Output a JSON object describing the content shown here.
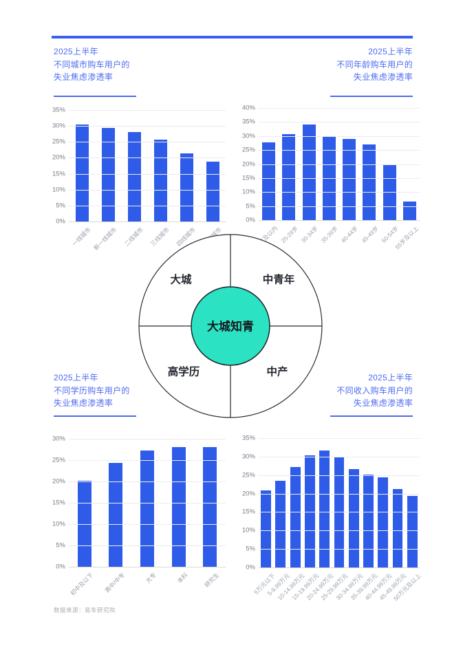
{
  "palette": {
    "accent_blue": "#3b5ef5",
    "title_blue": "#4e6af0",
    "bar_blue": "#2e5ce8",
    "teal": "#2be3c3",
    "ink": "#22262e"
  },
  "sections": {
    "city": {
      "title_lines": [
        "2025上半年",
        "不同城市购车用户的",
        "失业焦虑渗透率"
      ]
    },
    "age": {
      "title_lines": [
        "2025上半年",
        "不同年龄购车用户的",
        "失业焦虑渗透率"
      ]
    },
    "education": {
      "title_lines": [
        "2025上半年",
        "不同学历购车用户的",
        "失业焦虑渗透率"
      ]
    },
    "income": {
      "title_lines": [
        "2025上半年",
        "不同收入购车用户的",
        "失业焦虑渗透率"
      ]
    }
  },
  "venn": {
    "center_label": "大城知青",
    "quadrants": {
      "top_left": "大城",
      "top_right": "中青年",
      "bottom_left": "高学历",
      "bottom_right": "中产"
    }
  },
  "source": "数据来源：易车研究院",
  "chart_data": [
    {
      "type": "bar",
      "title": "2025上半年不同城市购车用户的失业焦虑渗透率",
      "categories": [
        "一线城市",
        "新一线城市",
        "二线城市",
        "三线城市",
        "四线城市",
        "五线城市"
      ],
      "values": [
        30.5,
        29.4,
        28.1,
        25.8,
        21.3,
        18.8
      ],
      "unit": "%",
      "xlabel": "",
      "ylabel": "",
      "ylim": [
        0,
        35
      ],
      "ytick_step": 5,
      "grid": true,
      "legend": false,
      "bar_width_ratio": 0.5
    },
    {
      "type": "bar",
      "title": "2025上半年不同年龄购车用户的失业焦虑渗透率",
      "categories": [
        "24岁及以内",
        "25-29岁",
        "30-34岁",
        "35-39岁",
        "40-44岁",
        "45-49岁",
        "50-54岁",
        "55岁及以上"
      ],
      "values": [
        27.7,
        30.6,
        34.1,
        29.9,
        28.9,
        26.9,
        19.7,
        6.7
      ],
      "unit": "%",
      "xlabel": "",
      "ylabel": "",
      "ylim": [
        0,
        40
      ],
      "ytick_step": 5,
      "grid": true,
      "legend": false,
      "bar_width_ratio": 0.65
    },
    {
      "type": "bar",
      "title": "2025上半年不同学历购车用户的失业焦虑渗透率",
      "categories": [
        "初中及以下",
        "高中/中专",
        "大专",
        "本科",
        "研究生"
      ],
      "values": [
        20.2,
        24.4,
        27.3,
        28.1,
        28.0
      ],
      "unit": "%",
      "xlabel": "",
      "ylabel": "",
      "ylim": [
        0,
        30
      ],
      "ytick_step": 5,
      "grid": true,
      "legend": false,
      "bar_width_ratio": 0.44
    },
    {
      "type": "bar",
      "title": "2025上半年不同收入购车用户的失业焦虑渗透率",
      "categories": [
        "5万元以下",
        "5-9.99万元",
        "10-14.99万元",
        "15-19.99万元",
        "20-24.99万元",
        "25-29.99万元",
        "30-34.99万元",
        "35-39.99万元",
        "40-44.99万元",
        "45-49.99万元",
        "50万元及以上"
      ],
      "values": [
        20.9,
        23.5,
        27.2,
        30.4,
        31.7,
        29.9,
        26.6,
        25.2,
        24.4,
        21.2,
        19.4
      ],
      "unit": "%",
      "xlabel": "",
      "ylabel": "",
      "ylim": [
        0,
        35
      ],
      "ytick_step": 5,
      "grid": true,
      "legend": false,
      "bar_width_ratio": 0.7
    }
  ]
}
